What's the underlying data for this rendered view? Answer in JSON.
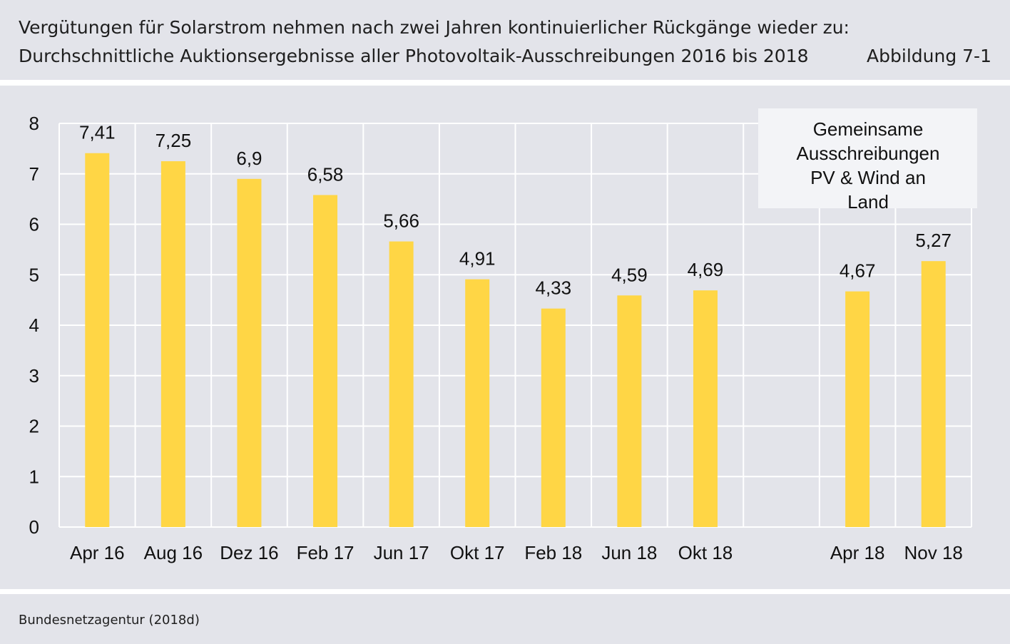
{
  "header": {
    "title_line_1": "Vergütungen für Solarstrom nehmen nach zwei Jahren kontinuierlicher Rückgänge wieder zu:",
    "title_line_2": "Durchschnittliche Auktionsergebnisse aller Photovoltaik-Ausschreibungen 2016 bis 2018",
    "figure_label": "Abbildung 7-1"
  },
  "footer": {
    "source": "Bundesnetzagentur (2018d)"
  },
  "colors": {
    "bar": "#ffd645",
    "panel_background": "#e3e4ea",
    "gridline": "#ffffff"
  },
  "chart_data": {
    "type": "bar",
    "categories": [
      "Apr 16",
      "Aug 16",
      "Dez 16",
      "Feb 17",
      "Jun 17",
      "Okt 17",
      "Feb 18",
      "Jun 18",
      "Okt 18",
      "",
      "Apr 18",
      "Nov 18"
    ],
    "values": [
      7.41,
      7.25,
      6.9,
      6.58,
      5.66,
      4.91,
      4.33,
      4.59,
      4.69,
      null,
      4.67,
      5.27
    ],
    "value_labels": [
      "7,41",
      "7,25",
      "6,9",
      "6,58",
      "5,66",
      "4,91",
      "4,33",
      "4,59",
      "4,69",
      "",
      "4,67",
      "5,27"
    ],
    "yticks": [
      0,
      1,
      2,
      3,
      4,
      5,
      6,
      7,
      8
    ],
    "ylim": [
      0,
      8
    ],
    "grid": true,
    "annotation": {
      "lines": [
        "Gemeinsame",
        "Ausschreibungen",
        "PV &  Wind an",
        "Land"
      ],
      "placement": "top-right"
    }
  }
}
